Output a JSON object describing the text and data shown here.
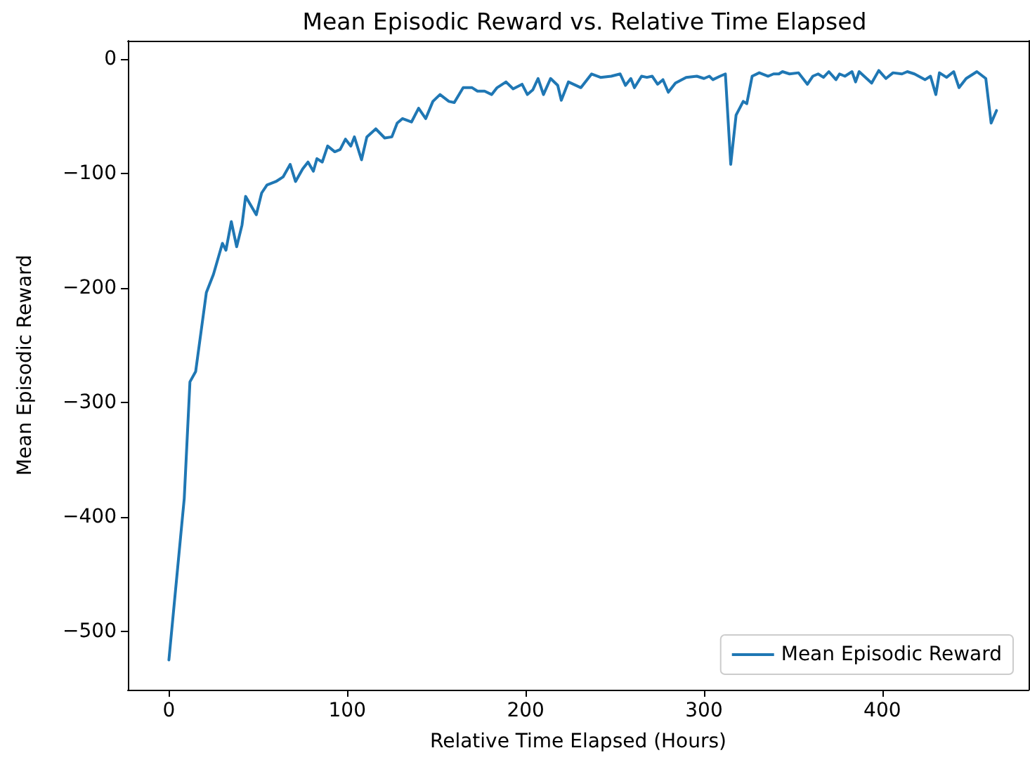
{
  "chart_data": {
    "type": "line",
    "title": "Mean Episodic Reward vs. Relative Time Elapsed",
    "xlabel": "Relative Time Elapsed (Hours)",
    "ylabel": "Mean Episodic Reward",
    "series": [
      {
        "name": "Mean Episodic Reward",
        "color": "#1f77b4",
        "x": [
          0,
          8.6,
          11.8,
          15,
          21,
          25,
          30,
          32,
          35,
          38,
          41,
          43,
          49,
          52,
          55,
          60,
          64,
          68,
          71,
          75,
          78,
          81,
          83,
          86,
          89,
          93,
          96,
          99,
          102,
          104,
          108,
          111,
          116,
          121,
          125,
          128,
          131,
          136,
          140,
          144,
          148,
          152,
          157,
          160,
          165,
          170,
          173,
          177,
          181,
          184,
          189,
          193,
          198,
          201,
          204,
          207,
          210,
          214,
          218,
          220,
          224,
          231,
          237,
          242,
          248,
          253,
          256,
          259,
          261,
          265,
          268,
          271,
          274,
          277,
          280,
          284,
          290,
          296,
          300,
          303,
          305,
          309,
          312,
          315,
          318,
          322,
          324,
          327,
          331,
          336,
          339,
          342,
          344,
          348,
          353,
          358,
          361,
          364,
          367,
          370,
          374,
          376,
          379,
          383,
          385,
          387,
          394,
          398,
          402,
          406,
          411,
          414,
          418,
          424,
          427,
          430,
          432,
          436,
          440,
          443,
          447,
          453,
          458,
          461,
          464
        ],
        "values": [
          -525,
          -384,
          -282,
          -273,
          -204,
          -188,
          -161,
          -167,
          -142,
          -164,
          -145,
          -120,
          -136,
          -117,
          -110,
          -107,
          -103,
          -92,
          -107,
          -96,
          -90,
          -98,
          -87,
          -90,
          -76,
          -81,
          -79,
          -70,
          -76,
          -68,
          -88,
          -68,
          -61,
          -69,
          -68,
          -56,
          -52,
          -55,
          -43,
          -52,
          -37,
          -31,
          -37,
          -38,
          -25,
          -25,
          -28,
          -28,
          -31,
          -25,
          -20,
          -26,
          -22,
          -31,
          -27,
          -17,
          -31,
          -17,
          -23,
          -36,
          -20,
          -25,
          -13,
          -16,
          -15,
          -13,
          -23,
          -17,
          -25,
          -15,
          -16,
          -15,
          -22,
          -18,
          -29,
          -21,
          -16,
          -15,
          -17,
          -15,
          -18,
          -15,
          -13,
          -92,
          -49,
          -37,
          -39,
          -15,
          -12,
          -15,
          -13,
          -13,
          -11,
          -13,
          -12,
          -22,
          -15,
          -13,
          -16,
          -11,
          -18,
          -13,
          -15,
          -11,
          -20,
          -11,
          -21,
          -10,
          -17,
          -12,
          -13,
          -11,
          -13,
          -18,
          -15,
          -31,
          -12,
          -16,
          -11,
          -25,
          -17,
          -11,
          -17,
          -56,
          -45
        ]
      }
    ],
    "xlim": [
      -23,
      482
    ],
    "xticks": [
      0,
      100,
      200,
      300,
      400
    ],
    "ylim": [
      -551,
      16
    ],
    "yticks": [
      {
        "value": -500,
        "label": "−500"
      },
      {
        "value": -400,
        "label": "−400"
      },
      {
        "value": -300,
        "label": "−300"
      },
      {
        "value": -200,
        "label": "−200"
      },
      {
        "value": -100,
        "label": "−100"
      },
      0
    ],
    "grid": false,
    "legend": "bottom right",
    "marker": "none",
    "line_style": "solid"
  }
}
